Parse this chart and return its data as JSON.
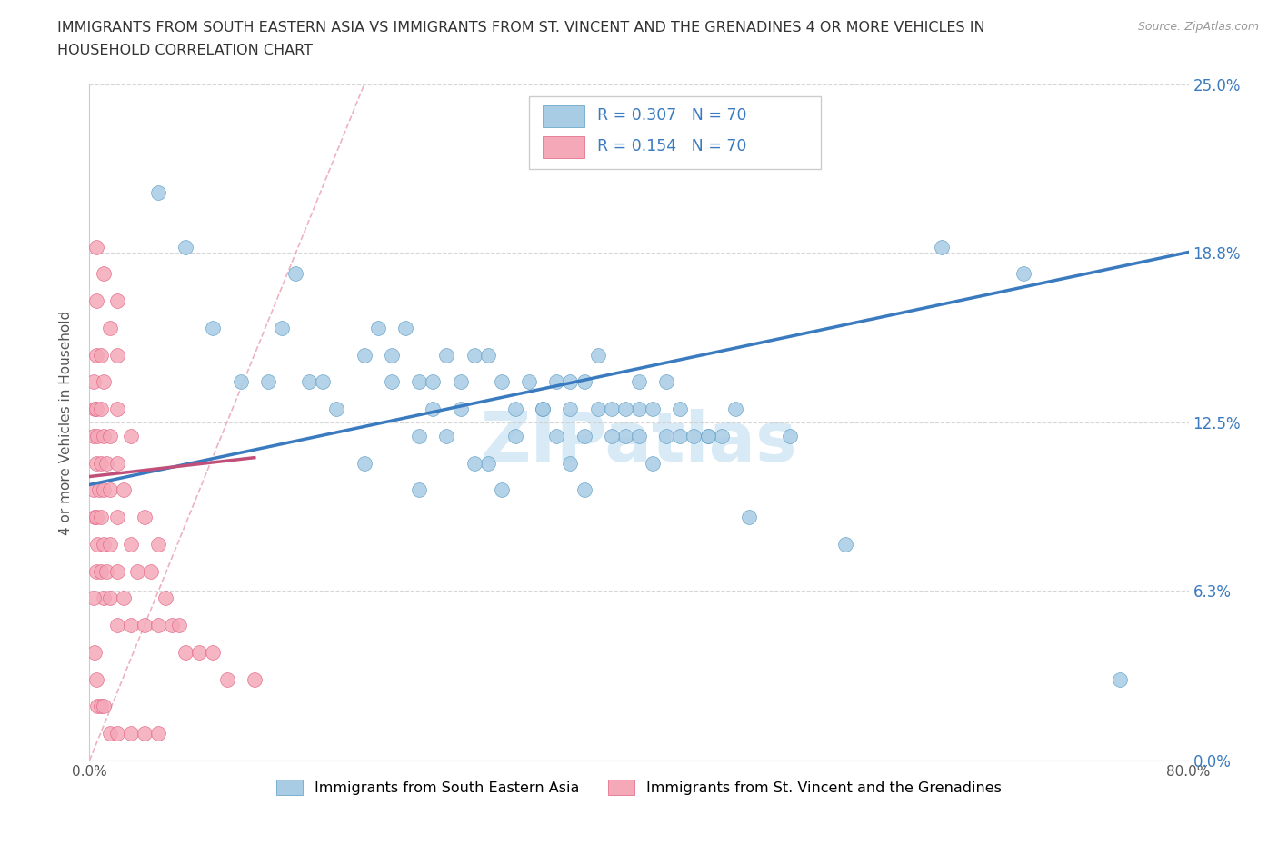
{
  "title_line1": "IMMIGRANTS FROM SOUTH EASTERN ASIA VS IMMIGRANTS FROM ST. VINCENT AND THE GRENADINES 4 OR MORE VEHICLES IN",
  "title_line2": "HOUSEHOLD CORRELATION CHART",
  "source": "Source: ZipAtlas.com",
  "ylabel": "4 or more Vehicles in Household",
  "xlim": [
    0,
    80
  ],
  "ylim": [
    0,
    25
  ],
  "ytick_vals": [
    0,
    6.3,
    12.5,
    18.8,
    25.0
  ],
  "right_ytick_labels": [
    "0.0%",
    "6.3%",
    "12.5%",
    "18.8%",
    "25.0%"
  ],
  "blue_R": 0.307,
  "blue_N": 70,
  "pink_R": 0.154,
  "pink_N": 70,
  "blue_color": "#a8cce4",
  "pink_color": "#f4a8b8",
  "blue_edge_color": "#5b9cc4",
  "pink_edge_color": "#e06080",
  "blue_line_color": "#3a7abf",
  "pink_line_color": "#c0507a",
  "diag_color": "#e8a0b0",
  "watermark_color": "#d8eaf5",
  "legend_text_color": "#3a7abf",
  "legend_pink_text_color": "#c0507a",
  "blue_scatter_x": [
    5,
    7,
    9,
    11,
    13,
    14,
    15,
    16,
    17,
    18,
    20,
    21,
    22,
    22,
    23,
    24,
    25,
    25,
    26,
    27,
    28,
    29,
    30,
    31,
    32,
    33,
    34,
    35,
    35,
    36,
    37,
    37,
    38,
    39,
    40,
    40,
    41,
    42,
    43,
    43,
    44,
    45,
    46,
    47,
    24,
    26,
    29,
    31,
    34,
    36,
    38,
    40,
    42,
    20,
    28,
    35,
    41,
    24,
    30,
    36,
    48,
    55,
    62,
    68,
    75,
    27,
    33,
    39,
    45,
    51
  ],
  "blue_scatter_y": [
    21,
    19,
    16,
    14,
    14,
    16,
    18,
    14,
    14,
    13,
    15,
    16,
    15,
    14,
    16,
    14,
    13,
    14,
    15,
    14,
    15,
    15,
    14,
    13,
    14,
    13,
    14,
    13,
    14,
    14,
    13,
    15,
    13,
    12,
    13,
    14,
    13,
    14,
    12,
    13,
    12,
    12,
    12,
    13,
    12,
    12,
    11,
    12,
    12,
    12,
    12,
    12,
    12,
    11,
    11,
    11,
    11,
    10,
    10,
    10,
    9,
    8,
    19,
    18,
    3,
    13,
    13,
    13,
    12,
    12
  ],
  "pink_scatter_x": [
    0.3,
    0.3,
    0.3,
    0.4,
    0.4,
    0.5,
    0.5,
    0.5,
    0.5,
    0.5,
    0.5,
    0.6,
    0.6,
    0.7,
    0.8,
    0.8,
    0.8,
    0.8,
    0.8,
    1.0,
    1.0,
    1.0,
    1.0,
    1.0,
    1.2,
    1.2,
    1.5,
    1.5,
    1.5,
    1.5,
    1.5,
    2.0,
    2.0,
    2.0,
    2.0,
    2.0,
    2.0,
    2.5,
    2.5,
    3.0,
    3.0,
    3.0,
    3.5,
    4.0,
    4.0,
    4.5,
    5.0,
    5.0,
    5.5,
    6.0,
    6.5,
    7.0,
    8.0,
    9.0,
    10.0,
    12.0,
    0.3,
    0.4,
    0.5,
    0.6,
    0.8,
    1.0,
    1.5,
    2.0,
    3.0,
    4.0,
    5.0,
    0.5,
    1.0,
    2.0
  ],
  "pink_scatter_y": [
    10,
    12,
    14,
    9,
    13,
    7,
    9,
    11,
    13,
    15,
    17,
    8,
    12,
    10,
    7,
    9,
    11,
    13,
    15,
    6,
    8,
    10,
    12,
    14,
    7,
    11,
    6,
    8,
    10,
    12,
    16,
    5,
    7,
    9,
    11,
    13,
    15,
    6,
    10,
    5,
    8,
    12,
    7,
    5,
    9,
    7,
    5,
    8,
    6,
    5,
    5,
    4,
    4,
    4,
    3,
    3,
    6,
    4,
    3,
    2,
    2,
    2,
    1,
    1,
    1,
    1,
    1,
    19,
    18,
    17
  ],
  "blue_trend_x0": 0,
  "blue_trend_y0": 10.2,
  "blue_trend_x1": 80,
  "blue_trend_y1": 18.8,
  "pink_trend_x0": 0,
  "pink_trend_y0": 10.5,
  "pink_trend_x1": 12,
  "pink_trend_y1": 11.2,
  "diag_x0": 0,
  "diag_y0": 0,
  "diag_x1": 20,
  "diag_y1": 25
}
